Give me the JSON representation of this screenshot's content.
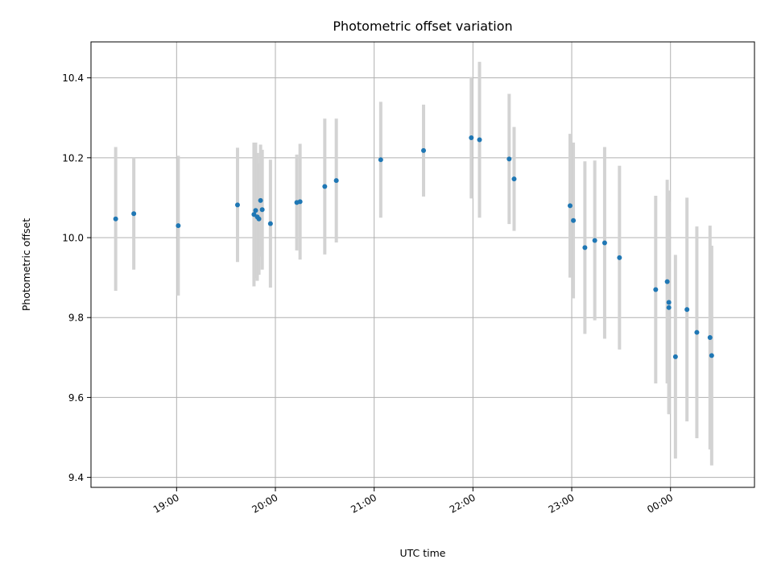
{
  "chart_data": {
    "type": "scatter",
    "title": "Photometric offset variation",
    "xlabel": "UTC time",
    "ylabel": "Photometric offset",
    "x_ticks": [
      "19:00",
      "20:00",
      "21:00",
      "22:00",
      "23:00",
      "00:00"
    ],
    "y_ticks": [
      "9.4",
      "9.6",
      "9.8",
      "10.0",
      "10.2",
      "10.4"
    ],
    "xlim": [
      "18:08",
      "00:51"
    ],
    "ylim": [
      9.375,
      10.49
    ],
    "grid": true,
    "colors": {
      "points": "#1f77b4",
      "errorbars": "#d3d3d3"
    },
    "points": [
      {
        "x": "18:23",
        "y": 10.047,
        "err": 0.18
      },
      {
        "x": "18:34",
        "y": 10.06,
        "err": 0.14
      },
      {
        "x": "19:01",
        "y": 10.03,
        "err": 0.175
      },
      {
        "x": "19:37",
        "y": 10.082,
        "err": 0.143
      },
      {
        "x": "19:47",
        "y": 10.058,
        "err": 0.18
      },
      {
        "x": "19:48",
        "y": 10.068,
        "err": 0.17
      },
      {
        "x": "19:49",
        "y": 10.052,
        "err": 0.16
      },
      {
        "x": "19:50",
        "y": 10.047,
        "err": 0.14
      },
      {
        "x": "19:51",
        "y": 10.093,
        "err": 0.14
      },
      {
        "x": "19:52",
        "y": 10.07,
        "err": 0.15
      },
      {
        "x": "19:57",
        "y": 10.035,
        "err": 0.16
      },
      {
        "x": "20:13",
        "y": 10.088,
        "err": 0.12
      },
      {
        "x": "20:15",
        "y": 10.09,
        "err": 0.145
      },
      {
        "x": "20:30",
        "y": 10.128,
        "err": 0.17
      },
      {
        "x": "20:37",
        "y": 10.143,
        "err": 0.155
      },
      {
        "x": "21:04",
        "y": 10.195,
        "err": 0.145
      },
      {
        "x": "21:30",
        "y": 10.218,
        "err": 0.115
      },
      {
        "x": "21:59",
        "y": 10.25,
        "err": 0.152
      },
      {
        "x": "22:04",
        "y": 10.245,
        "err": 0.195
      },
      {
        "x": "22:22",
        "y": 10.197,
        "err": 0.163
      },
      {
        "x": "22:25",
        "y": 10.147,
        "err": 0.13
      },
      {
        "x": "22:59",
        "y": 10.08,
        "err": 0.18
      },
      {
        "x": "23:01",
        "y": 10.043,
        "err": 0.195
      },
      {
        "x": "23:08",
        "y": 9.975,
        "err": 0.216
      },
      {
        "x": "23:14",
        "y": 9.993,
        "err": 0.2
      },
      {
        "x": "23:20",
        "y": 9.987,
        "err": 0.24
      },
      {
        "x": "23:29",
        "y": 9.95,
        "err": 0.23
      },
      {
        "x": "23:51",
        "y": 9.87,
        "err": 0.235
      },
      {
        "x": "23:58",
        "y": 9.89,
        "err": 0.255
      },
      {
        "x": "23:59",
        "y": 9.838,
        "err": 0.28
      },
      {
        "x": "23:59",
        "y": 9.825,
        "err": 0.265
      },
      {
        "x": "00:03",
        "y": 9.702,
        "err": 0.255
      },
      {
        "x": "00:10",
        "y": 9.82,
        "err": 0.28
      },
      {
        "x": "00:16",
        "y": 9.763,
        "err": 0.265
      },
      {
        "x": "00:24",
        "y": 9.75,
        "err": 0.28
      },
      {
        "x": "00:25",
        "y": 9.705,
        "err": 0.275
      }
    ]
  }
}
